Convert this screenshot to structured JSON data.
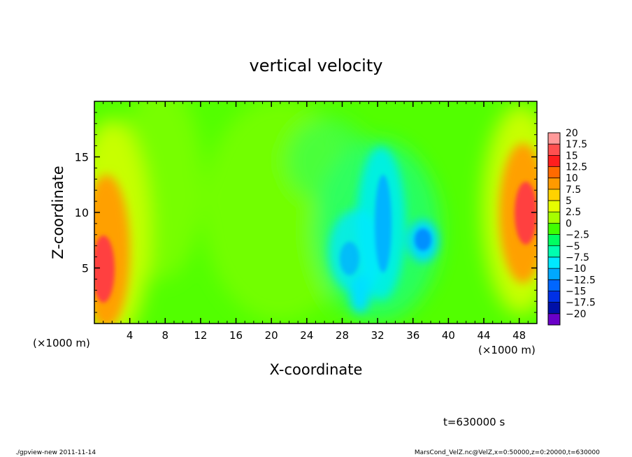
{
  "chart_data": {
    "type": "heatmap",
    "title": "vertical velocity",
    "xlabel": "X-coordinate",
    "ylabel": "Z-coordinate",
    "x_unit_left": "(×1000 m)",
    "x_unit_right": "(×1000 m)",
    "xlim": [
      0,
      50
    ],
    "ylim": [
      0,
      20
    ],
    "x_ticks": [
      4,
      8,
      12,
      16,
      20,
      24,
      28,
      32,
      36,
      40,
      44,
      48
    ],
    "y_ticks": [
      5,
      10,
      15
    ],
    "time_label": "t=630000 s",
    "colorbar": {
      "levels": [
        "20",
        "17.5",
        "15",
        "12.5",
        "10",
        "7.5",
        "5",
        "2.5",
        "0",
        "−2.5",
        "−5",
        "−7.5",
        "−10",
        "−12.5",
        "−15",
        "−17.5",
        "−20"
      ],
      "colors": [
        "#ff9a9a",
        "#ff5050",
        "#ff1e1e",
        "#ff6a00",
        "#ff9a00",
        "#ffd200",
        "#e6ff00",
        "#a6ff00",
        "#40ff00",
        "#00ff60",
        "#00ffb0",
        "#00e8ff",
        "#00a8ff",
        "#0066ff",
        "#0030e6",
        "#0010a8",
        "#6a00c8"
      ]
    },
    "features": [
      {
        "name": "updraft-left",
        "x": 1.2,
        "z": 5.5,
        "peak": 14
      },
      {
        "name": "updraft-right",
        "x": 48.8,
        "z": 10,
        "peak": 14
      },
      {
        "name": "downdraft-center",
        "x": 32.5,
        "z": 10,
        "peak": -8
      },
      {
        "name": "downdraft-east",
        "x": 37.5,
        "z": 7.5,
        "peak": -8
      }
    ]
  },
  "footer": {
    "left": "./gpview-new  2011-11-14",
    "right": "MarsCond_VelZ.nc@VelZ,x=0:50000,z=0:20000,t=630000"
  }
}
